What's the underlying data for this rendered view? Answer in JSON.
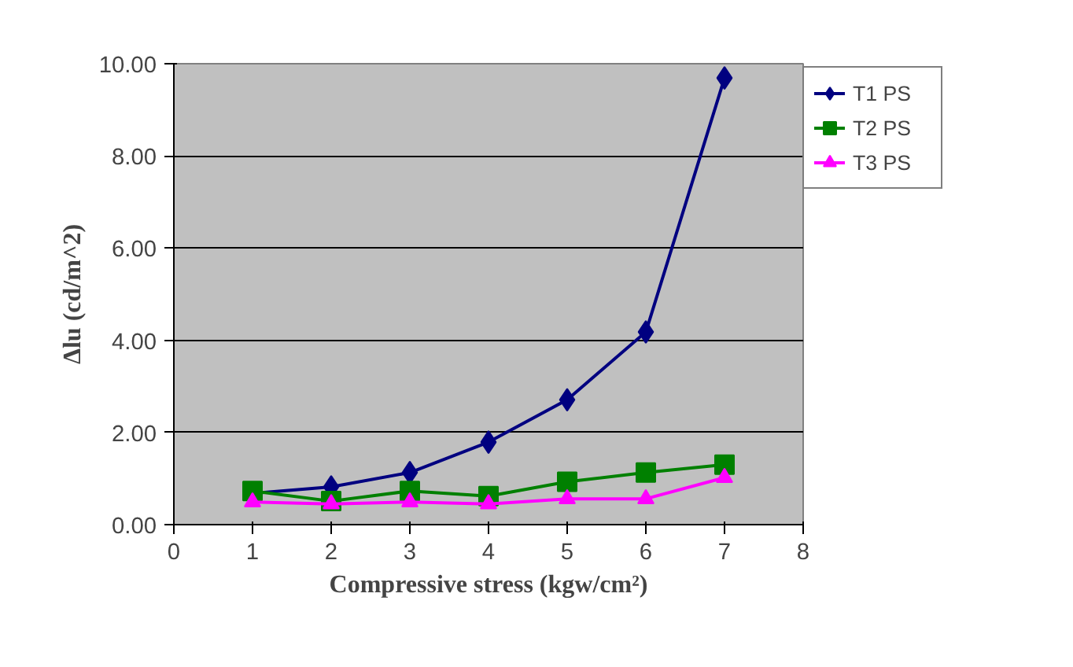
{
  "chart_data": {
    "type": "line",
    "xlabel": "Compressive stress (kgw/cm²)",
    "ylabel": "Δlu (cd/m^2)",
    "x": [
      1,
      2,
      3,
      4,
      5,
      6,
      7
    ],
    "series": [
      {
        "name": "T1 PS",
        "color": "#000080",
        "marker": "diamond",
        "values": [
          0.68,
          0.82,
          1.13,
          1.79,
          2.71,
          4.18,
          9.69
        ]
      },
      {
        "name": "T2 PS",
        "color": "#008000",
        "marker": "square",
        "values": [
          0.73,
          0.51,
          0.73,
          0.62,
          0.93,
          1.13,
          1.3
        ]
      },
      {
        "name": "T3 PS",
        "color": "#ff00ff",
        "marker": "triangle",
        "values": [
          0.49,
          0.45,
          0.49,
          0.45,
          0.56,
          0.56,
          1.02
        ]
      }
    ],
    "xlim": [
      0,
      8
    ],
    "xticks": [
      0,
      1,
      2,
      3,
      4,
      5,
      6,
      7,
      8
    ],
    "ylim": [
      0,
      10
    ],
    "yticks": [
      {
        "value": 0,
        "label": "0.00"
      },
      {
        "value": 2,
        "label": "2.00"
      },
      {
        "value": 4,
        "label": "4.00"
      },
      {
        "value": 6,
        "label": "6.00"
      },
      {
        "value": 8,
        "label": "8.00"
      },
      {
        "value": 10,
        "label": "10.00"
      }
    ],
    "grid": "y",
    "legend": "top right",
    "line_style": "solid"
  }
}
